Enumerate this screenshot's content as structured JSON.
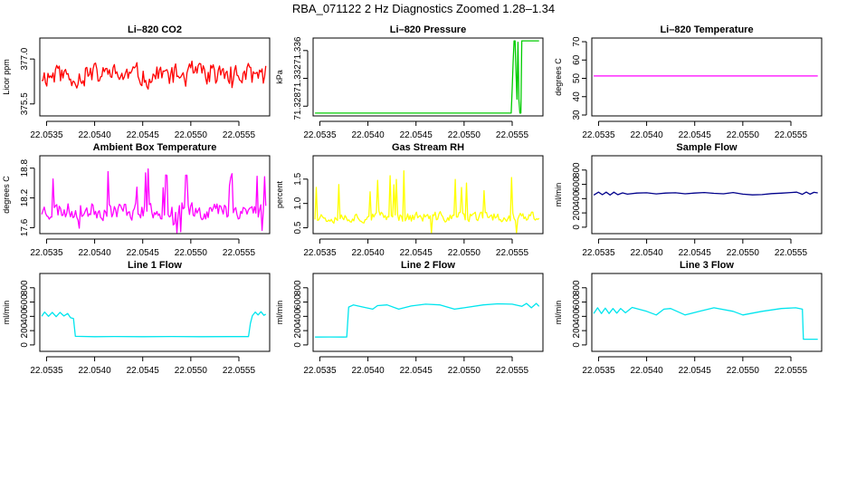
{
  "figure": {
    "title": "RBA_071122  2 Hz Diagnostics Zoomed 1.28–1.34"
  },
  "chart_data": [
    {
      "type": "line",
      "title": "Li–820 CO2",
      "ylabel": "Licor ppm",
      "color": "#ff0000",
      "xlim": [
        22.05343,
        22.05582
      ],
      "ylim": [
        375.1,
        377.7
      ],
      "x_ticks": [
        22.0535,
        22.054,
        22.0545,
        22.055,
        22.0555
      ],
      "x_tick_labels": [
        "22.0535",
        "22.0540",
        "22.0545",
        "22.0550",
        "22.0555"
      ],
      "y_ticks": [
        375.5,
        377.0
      ],
      "y_tick_labels": [
        "375.5",
        "377.0"
      ],
      "series": [
        {
          "x_range": [
            22.05345,
            22.05578
          ],
          "pattern": "noise",
          "base": 376.45,
          "amp": 0.42,
          "spike": 0.35,
          "seed": 11
        }
      ]
    },
    {
      "type": "line",
      "title": "Li–820 Pressure",
      "ylabel": "kPa",
      "color": "#00cc00",
      "xlim": [
        22.05343,
        22.05582
      ],
      "ylim": [
        71.3266,
        71.3378
      ],
      "x_ticks": [
        22.0535,
        22.054,
        22.0545,
        22.055,
        22.0555
      ],
      "x_tick_labels": [
        "22.0535",
        "22.0540",
        "22.0545",
        "22.0550",
        "22.0555"
      ],
      "y_ticks": [
        71.328,
        71.332,
        71.336
      ],
      "y_tick_labels": [
        "71.328",
        "71.332",
        "71.336"
      ],
      "series": [
        {
          "points": [
            [
              22.05345,
              71.327
            ],
            [
              22.05549,
              71.327
            ],
            [
              22.0555,
              71.3305
            ],
            [
              22.05551,
              71.3345
            ],
            [
              22.05552,
              71.3374
            ],
            [
              22.05553,
              71.3374
            ],
            [
              22.05554,
              71.333
            ],
            [
              22.05555,
              71.329
            ],
            [
              22.05556,
              71.3372
            ],
            [
              22.05557,
              71.329
            ],
            [
              22.05558,
              71.327
            ],
            [
              22.05559,
              71.327
            ],
            [
              22.0556,
              71.3374
            ],
            [
              22.05578,
              71.3374
            ]
          ]
        }
      ]
    },
    {
      "type": "line",
      "title": "Li–820 Temperature",
      "ylabel": "degrees C",
      "color": "#ff00ff",
      "xlim": [
        22.05343,
        22.05582
      ],
      "ylim": [
        29.5,
        72
      ],
      "x_ticks": [
        22.0535,
        22.054,
        22.0545,
        22.055,
        22.0555
      ],
      "x_tick_labels": [
        "22.0535",
        "22.0540",
        "22.0545",
        "22.0550",
        "22.0555"
      ],
      "y_ticks": [
        30,
        40,
        50,
        60,
        70
      ],
      "y_tick_labels": [
        "30",
        "40",
        "50",
        "60",
        "70"
      ],
      "series": [
        {
          "points": [
            [
              22.05345,
              51.3
            ],
            [
              22.05578,
              51.3
            ]
          ]
        }
      ]
    },
    {
      "type": "line",
      "title": "Ambient Box Temperature",
      "ylabel": "degrees C",
      "color": "#ff00ff",
      "xlim": [
        22.05343,
        22.05582
      ],
      "ylim": [
        17.48,
        19.05
      ],
      "x_ticks": [
        22.0535,
        22.054,
        22.0545,
        22.055,
        22.0555
      ],
      "x_tick_labels": [
        "22.0535",
        "22.0540",
        "22.0545",
        "22.0550",
        "22.0555"
      ],
      "y_ticks": [
        17.6,
        18.2,
        18.8
      ],
      "y_tick_labels": [
        "17.6",
        "18.2",
        "18.8"
      ],
      "series": [
        {
          "x_range": [
            22.05345,
            22.05578
          ],
          "pattern": "noise",
          "base": 17.95,
          "amp": 0.2,
          "spike": 0.85,
          "seed": 23
        }
      ]
    },
    {
      "type": "line",
      "title": "Gas Stream RH",
      "ylabel": "percent",
      "color": "#ffff00",
      "xlim": [
        22.05343,
        22.05582
      ],
      "ylim": [
        0.38,
        1.98
      ],
      "x_ticks": [
        22.0535,
        22.054,
        22.0545,
        22.055,
        22.0555
      ],
      "x_tick_labels": [
        "22.0535",
        "22.0540",
        "22.0545",
        "22.0550",
        "22.0555"
      ],
      "y_ticks": [
        0.5,
        1.0,
        1.5
      ],
      "y_tick_labels": [
        "0.5",
        "1.0",
        "1.5"
      ],
      "series": [
        {
          "x_range": [
            22.05345,
            22.05578
          ],
          "pattern": "noise",
          "base": 0.72,
          "amp": 0.12,
          "spike": 0.95,
          "seed": 37
        }
      ]
    },
    {
      "type": "line",
      "title": "Sample Flow",
      "ylabel": "ml/min",
      "color": "#00008b",
      "xlim": [
        22.05343,
        22.05582
      ],
      "ylim": [
        -90,
        1000
      ],
      "x_ticks": [
        22.0535,
        22.054,
        22.0545,
        22.055,
        22.0555
      ],
      "x_tick_labels": [
        "22.0535",
        "22.0540",
        "22.0545",
        "22.0550",
        "22.0555"
      ],
      "y_ticks": [
        0,
        200,
        400,
        600,
        800
      ],
      "y_tick_labels": [
        "0",
        "200",
        "400",
        "600",
        "800"
      ],
      "series": [
        {
          "points": [
            [
              22.05345,
              450
            ],
            [
              22.0535,
              490
            ],
            [
              22.05354,
              455
            ],
            [
              22.05358,
              490
            ],
            [
              22.05362,
              450
            ],
            [
              22.05366,
              490
            ],
            [
              22.0537,
              455
            ],
            [
              22.05375,
              480
            ],
            [
              22.0538,
              462
            ],
            [
              22.0539,
              478
            ],
            [
              22.054,
              482
            ],
            [
              22.0541,
              466
            ],
            [
              22.0542,
              478
            ],
            [
              22.0543,
              482
            ],
            [
              22.0544,
              468
            ],
            [
              22.0545,
              478
            ],
            [
              22.0546,
              485
            ],
            [
              22.0547,
              474
            ],
            [
              22.0548,
              468
            ],
            [
              22.0549,
              485
            ],
            [
              22.055,
              462
            ],
            [
              22.0551,
              452
            ],
            [
              22.0552,
              456
            ],
            [
              22.0553,
              470
            ],
            [
              22.0554,
              476
            ],
            [
              22.0555,
              486
            ],
            [
              22.05556,
              490
            ],
            [
              22.05562,
              460
            ],
            [
              22.05566,
              492
            ],
            [
              22.0557,
              462
            ],
            [
              22.05574,
              488
            ],
            [
              22.05578,
              480
            ]
          ]
        }
      ]
    },
    {
      "type": "line",
      "title": "Line 1 Flow",
      "ylabel": "ml/min",
      "color": "#00e5ee",
      "xlim": [
        22.05343,
        22.05582
      ],
      "ylim": [
        -90,
        1000
      ],
      "x_ticks": [
        22.0535,
        22.054,
        22.0545,
        22.055,
        22.0555
      ],
      "x_tick_labels": [
        "22.0535",
        "22.0540",
        "22.0545",
        "22.0550",
        "22.0555"
      ],
      "y_ticks": [
        0,
        200,
        400,
        600,
        800
      ],
      "y_tick_labels": [
        "0",
        "200",
        "400",
        "600",
        "800"
      ],
      "series": [
        {
          "points": [
            [
              22.05345,
              400
            ],
            [
              22.05348,
              460
            ],
            [
              22.05352,
              400
            ],
            [
              22.05356,
              455
            ],
            [
              22.0536,
              395
            ],
            [
              22.05364,
              455
            ],
            [
              22.05368,
              405
            ],
            [
              22.05372,
              440
            ],
            [
              22.05375,
              380
            ],
            [
              22.05378,
              370
            ],
            [
              22.0538,
              120
            ],
            [
              22.054,
              115
            ],
            [
              22.0542,
              118
            ],
            [
              22.0545,
              115
            ],
            [
              22.0548,
              118
            ],
            [
              22.0551,
              115
            ],
            [
              22.0554,
              117
            ],
            [
              22.0556,
              116
            ],
            [
              22.05562,
              300
            ],
            [
              22.05564,
              410
            ],
            [
              22.05567,
              460
            ],
            [
              22.0557,
              420
            ],
            [
              22.05573,
              465
            ],
            [
              22.05576,
              415
            ],
            [
              22.05578,
              430
            ]
          ]
        }
      ]
    },
    {
      "type": "line",
      "title": "Line 2 Flow",
      "ylabel": "ml/min",
      "color": "#00e5ee",
      "xlim": [
        22.05343,
        22.05582
      ],
      "ylim": [
        -90,
        1000
      ],
      "x_ticks": [
        22.0535,
        22.054,
        22.0545,
        22.055,
        22.0555
      ],
      "x_tick_labels": [
        "22.0535",
        "22.0540",
        "22.0545",
        "22.0550",
        "22.0555"
      ],
      "y_ticks": [
        0,
        200,
        400,
        600,
        800
      ],
      "y_tick_labels": [
        "0",
        "200",
        "400",
        "600",
        "800"
      ],
      "series": [
        {
          "points": [
            [
              22.05345,
              110
            ],
            [
              22.0536,
              112
            ],
            [
              22.05375,
              110
            ],
            [
              22.05378,
              112
            ],
            [
              22.0538,
              530
            ],
            [
              22.05385,
              560
            ],
            [
              22.05395,
              530
            ],
            [
              22.05405,
              500
            ],
            [
              22.0541,
              550
            ],
            [
              22.0542,
              560
            ],
            [
              22.05432,
              500
            ],
            [
              22.05445,
              545
            ],
            [
              22.0546,
              570
            ],
            [
              22.05475,
              560
            ],
            [
              22.0549,
              500
            ],
            [
              22.055,
              520
            ],
            [
              22.0552,
              560
            ],
            [
              22.05535,
              575
            ],
            [
              22.0555,
              570
            ],
            [
              22.0556,
              540
            ],
            [
              22.05565,
              580
            ],
            [
              22.0557,
              520
            ],
            [
              22.05575,
              580
            ],
            [
              22.05578,
              540
            ]
          ]
        }
      ]
    },
    {
      "type": "line",
      "title": "Line 3 Flow",
      "ylabel": "ml/min",
      "color": "#00e5ee",
      "xlim": [
        22.05343,
        22.05582
      ],
      "ylim": [
        -90,
        1000
      ],
      "x_ticks": [
        22.0535,
        22.054,
        22.0545,
        22.055,
        22.0555
      ],
      "x_tick_labels": [
        "22.0535",
        "22.0540",
        "22.0545",
        "22.0550",
        "22.0555"
      ],
      "y_ticks": [
        0,
        200,
        400,
        600,
        800
      ],
      "y_tick_labels": [
        "0",
        "200",
        "400",
        "600",
        "800"
      ],
      "series": [
        {
          "points": [
            [
              22.05345,
              440
            ],
            [
              22.05349,
              520
            ],
            [
              22.05353,
              440
            ],
            [
              22.05357,
              515
            ],
            [
              22.05361,
              440
            ],
            [
              22.05365,
              510
            ],
            [
              22.05369,
              445
            ],
            [
              22.05373,
              510
            ],
            [
              22.05378,
              450
            ],
            [
              22.05385,
              525
            ],
            [
              22.054,
              470
            ],
            [
              22.0541,
              420
            ],
            [
              22.05418,
              500
            ],
            [
              22.05425,
              510
            ],
            [
              22.0544,
              420
            ],
            [
              22.05455,
              470
            ],
            [
              22.0547,
              520
            ],
            [
              22.0549,
              470
            ],
            [
              22.055,
              420
            ],
            [
              22.0552,
              470
            ],
            [
              22.0554,
              510
            ],
            [
              22.05555,
              520
            ],
            [
              22.05562,
              500
            ],
            [
              22.05563,
              80
            ],
            [
              22.05578,
              80
            ]
          ]
        }
      ]
    }
  ]
}
